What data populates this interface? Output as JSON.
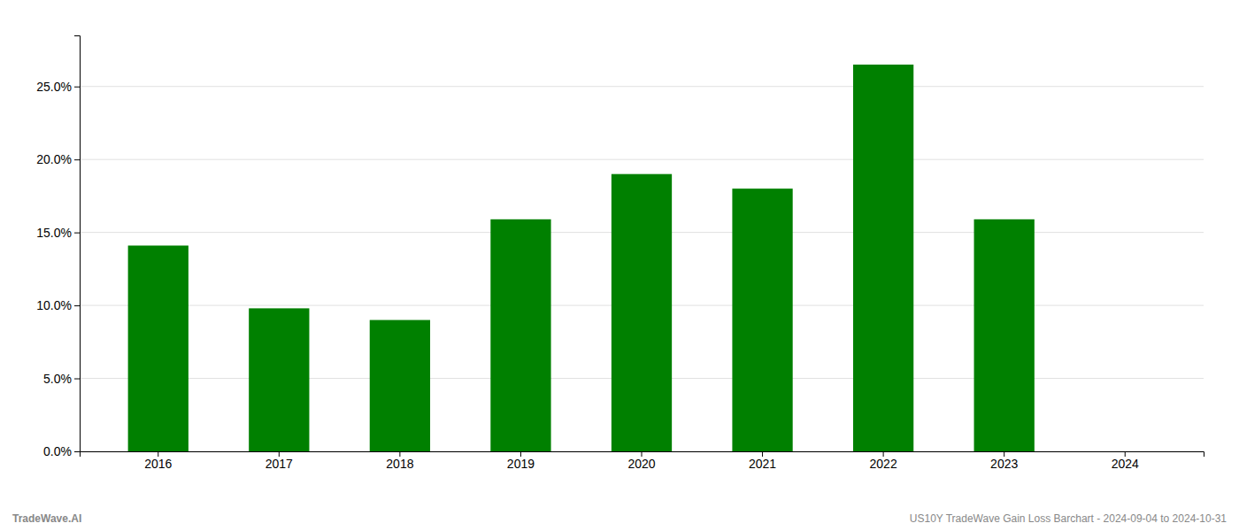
{
  "chart_data": {
    "type": "bar",
    "categories": [
      "2016",
      "2017",
      "2018",
      "2019",
      "2020",
      "2021",
      "2022",
      "2023",
      "2024"
    ],
    "values": [
      0.141,
      0.098,
      0.09,
      0.159,
      0.19,
      0.18,
      0.265,
      0.159,
      0.0
    ],
    "color": "#008000",
    "ylim": [
      0,
      0.285
    ],
    "yticks": [
      {
        "value": 0.0,
        "label": "0.0%"
      },
      {
        "value": 0.05,
        "label": "5.0%"
      },
      {
        "value": 0.1,
        "label": "10.0%"
      },
      {
        "value": 0.15,
        "label": "15.0%"
      },
      {
        "value": 0.2,
        "label": "20.0%"
      },
      {
        "value": 0.25,
        "label": "25.0%"
      }
    ],
    "grid": true,
    "annotations": [
      "TradeWave.AI",
      "US10Y TradeWave Gain Loss Barchart - 2024-09-04 to 2024-10-31"
    ]
  }
}
